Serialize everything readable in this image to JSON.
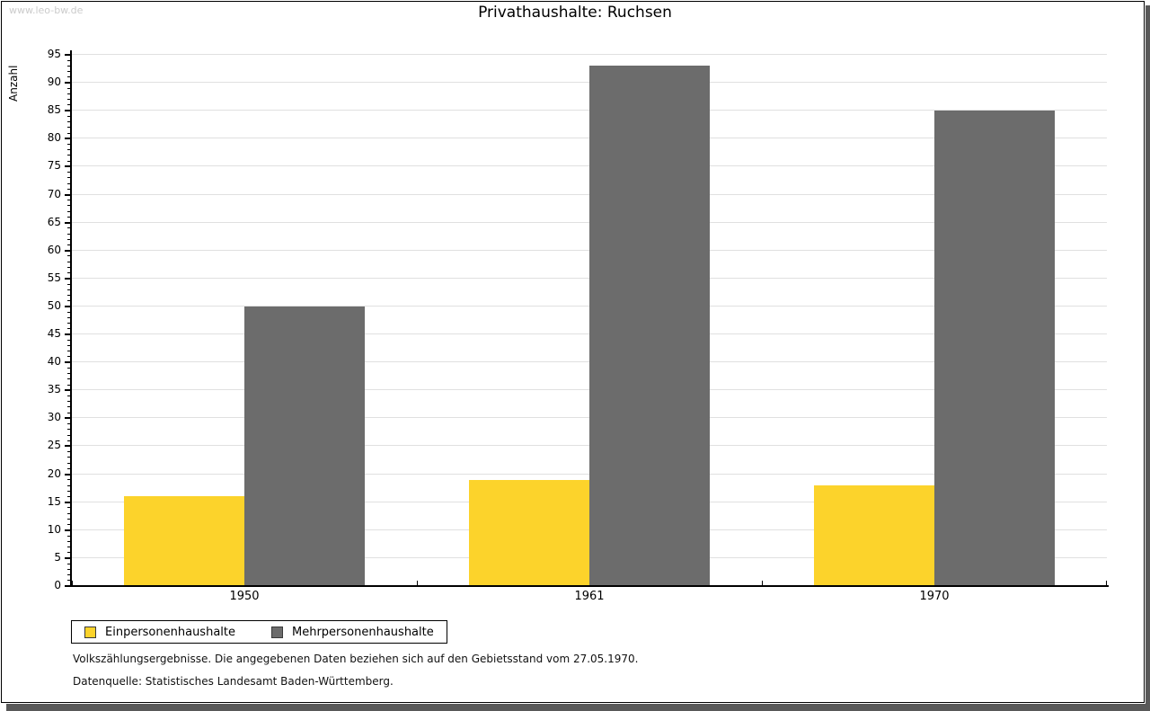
{
  "page": {
    "watermark": "www.leo-bw.de",
    "title": "Privathaushalte: Ruchsen",
    "footnote_line1": "Volkszählungsergebnisse. Die angegebenen Daten beziehen sich auf den Gebietsstand vom 27.05.1970.",
    "footnote_line2": "Datenquelle: Statistisches Landesamt Baden-Württemberg."
  },
  "chart_data": {
    "type": "bar",
    "title": "Privathaushalte: Ruchsen",
    "categories": [
      "1950",
      "1961",
      "1970"
    ],
    "series": [
      {
        "name": "Einpersonenhaushalte",
        "values": [
          16,
          19,
          18
        ],
        "color": "#FCD32B"
      },
      {
        "name": "Mehrpersonenhaushalte",
        "values": [
          50,
          93,
          85
        ],
        "color": "#6C6C6C"
      }
    ],
    "xlabel": "",
    "ylabel": "Anzahl",
    "ylim": [
      0,
      95
    ],
    "ytick_step": 5,
    "minor_tick_step": 1,
    "grid": true,
    "gridline_color": "#e0e0e0",
    "legend_position": "bottom-left"
  }
}
